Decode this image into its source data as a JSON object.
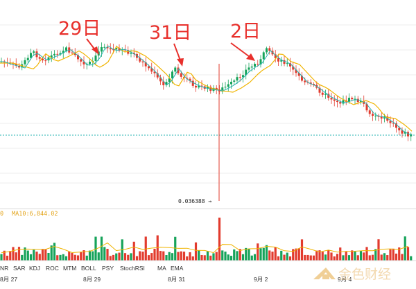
{
  "chart_data": {
    "type": "candlestick",
    "annotations": [
      "29日",
      "31日",
      "2日"
    ],
    "low_marker": "0.036388 →",
    "ma10_label": "MA10:6,844.02",
    "ma10_prefix": "0",
    "indicators": [
      "NR",
      "SAR",
      "KDJ",
      "ROC",
      "MTM",
      "BOLL",
      "PSY",
      "StochRSI",
      "MA",
      "EMA"
    ],
    "x_ticks": [
      "8月 27",
      "8月 29",
      "8月 31",
      "9月 2",
      "9月 4"
    ],
    "colors": {
      "up": "#16a35a",
      "down": "#e23b2e",
      "ma_slow": "#f0b400",
      "ma_fast": "#27b3b0",
      "annotation": "#e8302c"
    }
  },
  "watermark": {
    "text": "金色财经"
  }
}
